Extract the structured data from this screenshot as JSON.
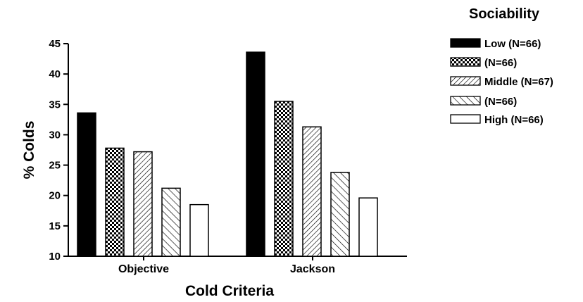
{
  "chart_data": {
    "type": "bar",
    "xlabel": "Cold Criteria",
    "ylabel": "% Colds",
    "ylim": [
      10,
      45
    ],
    "yticks": [
      10,
      15,
      20,
      25,
      30,
      35,
      40,
      45
    ],
    "categories": [
      "Objective",
      "Jackson"
    ],
    "legend_title": "Sociability",
    "legend_position": "top-right",
    "grid": false,
    "series": [
      {
        "name": "Low (N=66)",
        "pattern": "solid-black",
        "values": [
          33.6,
          43.6
        ]
      },
      {
        "name": "(N=66)",
        "pattern": "checker",
        "values": [
          27.8,
          35.5
        ]
      },
      {
        "name": "Middle (N=67)",
        "pattern": "hatch-dense",
        "values": [
          27.2,
          31.3
        ]
      },
      {
        "name": "(N=66)",
        "pattern": "hatch-wide",
        "values": [
          21.2,
          23.8
        ]
      },
      {
        "name": "High (N=66)",
        "pattern": "white",
        "values": [
          18.5,
          19.6
        ]
      }
    ]
  }
}
